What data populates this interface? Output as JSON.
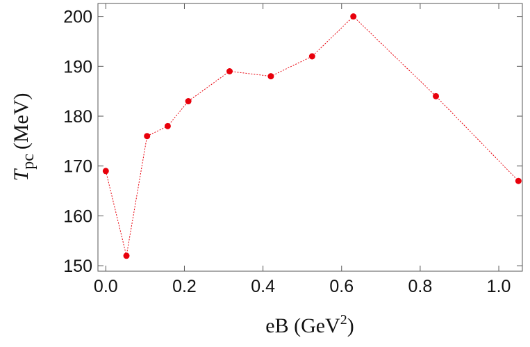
{
  "chart_data": {
    "type": "line",
    "x_label": {
      "text": "eB (GeV",
      "sup": "2",
      "close": ")"
    },
    "y_label": {
      "text": "T",
      "sub": "pc",
      "unit": "(MeV)"
    },
    "x": [
      0,
      0.0525,
      0.105,
      0.1575,
      0.21,
      0.315,
      0.42,
      0.525,
      0.63,
      0.84,
      1.05
    ],
    "series": [
      {
        "color": "#e8000b",
        "values": [
          169,
          152,
          176,
          178,
          183,
          189,
          188,
          192,
          200,
          184,
          167
        ]
      }
    ],
    "xlim": [
      -0.02,
      1.06
    ],
    "xticks": [
      {
        "value": 0,
        "label": "0.0"
      },
      0.2,
      0.4,
      0.6,
      0.8,
      {
        "value": 1,
        "label": "1.0"
      }
    ],
    "ylim": [
      148.9,
      202.6
    ],
    "yticks": [
      150,
      160,
      170,
      180,
      190,
      200
    ]
  }
}
